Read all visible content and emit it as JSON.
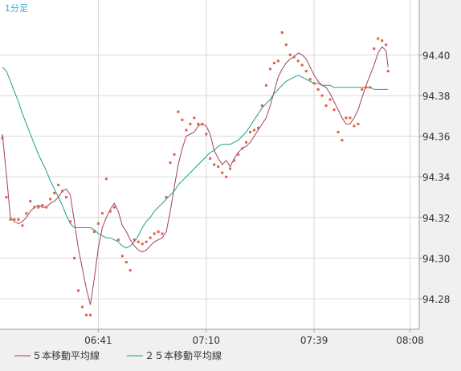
{
  "timeframe_label": "1分足",
  "colors": {
    "background": "#f0f0f0",
    "plot_background": "#ffffff",
    "grid": "#d8d8d8",
    "frame": "#a0a0a0",
    "timeframe": "#33aadd",
    "text": "#333333",
    "price_dots": "#e06040",
    "ma5": "#a04060",
    "ma25": "#20a080"
  },
  "legend": [
    {
      "label": "５本移動平均線",
      "color": "#a04060",
      "key": "ma5"
    },
    {
      "label": "２５本移動平均線",
      "color": "#20a080",
      "key": "ma25"
    }
  ],
  "chart_data": {
    "type": "line",
    "title": "",
    "xlabel": "",
    "ylabel": "",
    "ylim": [
      94.265,
      94.427
    ],
    "yticks": [
      94.28,
      94.3,
      94.32,
      94.34,
      94.36,
      94.38,
      94.4
    ],
    "ytick_labels": [
      "94.28",
      "94.30",
      "94.32",
      "94.34",
      "94.36",
      "94.38",
      "94.40"
    ],
    "xlim": [
      0,
      103.5
    ],
    "xticks": [
      {
        "x": 24,
        "label": "06:41"
      },
      {
        "x": 51,
        "label": "07:10"
      },
      {
        "x": 78,
        "label": "07:39"
      },
      {
        "x": 102,
        "label": "08:08"
      }
    ],
    "grid": true,
    "legend_position": "bottom",
    "series": [
      {
        "name": "５本移動平均線",
        "key": "ma5",
        "style": "line",
        "points": [
          [
            0,
            94.361
          ],
          [
            1,
            94.341
          ],
          [
            2,
            94.32
          ],
          [
            3,
            94.318
          ],
          [
            4,
            94.317
          ],
          [
            5,
            94.318
          ],
          [
            6,
            94.32
          ],
          [
            7,
            94.323
          ],
          [
            8,
            94.325
          ],
          [
            9,
            94.326
          ],
          [
            10,
            94.325
          ],
          [
            11,
            94.325
          ],
          [
            12,
            94.327
          ],
          [
            13,
            94.328
          ],
          [
            14,
            94.33
          ],
          [
            15,
            94.333
          ],
          [
            16,
            94.334
          ],
          [
            17,
            94.331
          ],
          [
            18,
            94.318
          ],
          [
            19,
            94.305
          ],
          [
            20,
            94.295
          ],
          [
            21,
            94.285
          ],
          [
            22,
            94.277
          ],
          [
            23,
            94.29
          ],
          [
            24,
            94.305
          ],
          [
            25,
            94.315
          ],
          [
            26,
            94.32
          ],
          [
            27,
            94.324
          ],
          [
            28,
            94.327
          ],
          [
            29,
            94.323
          ],
          [
            30,
            94.316
          ],
          [
            31,
            94.313
          ],
          [
            32,
            94.309
          ],
          [
            33,
            94.306
          ],
          [
            34,
            94.304
          ],
          [
            35,
            94.303
          ],
          [
            36,
            94.304
          ],
          [
            37,
            94.306
          ],
          [
            38,
            94.308
          ],
          [
            39,
            94.309
          ],
          [
            40,
            94.31
          ],
          [
            41,
            94.313
          ],
          [
            42,
            94.323
          ],
          [
            43,
            94.335
          ],
          [
            44,
            94.346
          ],
          [
            45,
            94.354
          ],
          [
            46,
            94.36
          ],
          [
            47,
            94.361
          ],
          [
            48,
            94.362
          ],
          [
            49,
            94.365
          ],
          [
            50,
            94.366
          ],
          [
            51,
            94.365
          ],
          [
            52,
            94.361
          ],
          [
            53,
            94.353
          ],
          [
            54,
            94.349
          ],
          [
            55,
            94.346
          ],
          [
            56,
            94.348
          ],
          [
            57,
            94.345
          ],
          [
            58,
            94.349
          ],
          [
            59,
            94.352
          ],
          [
            60,
            94.354
          ],
          [
            61,
            94.355
          ],
          [
            62,
            94.357
          ],
          [
            63,
            94.36
          ],
          [
            64,
            94.363
          ],
          [
            65,
            94.366
          ],
          [
            66,
            94.369
          ],
          [
            67,
            94.375
          ],
          [
            68,
            94.382
          ],
          [
            69,
            94.389
          ],
          [
            70,
            94.393
          ],
          [
            71,
            94.396
          ],
          [
            72,
            94.398
          ],
          [
            73,
            94.399
          ],
          [
            74,
            94.401
          ],
          [
            75,
            94.4
          ],
          [
            76,
            94.398
          ],
          [
            77,
            94.394
          ],
          [
            78,
            94.39
          ],
          [
            79,
            94.387
          ],
          [
            80,
            94.385
          ],
          [
            81,
            94.384
          ],
          [
            82,
            94.381
          ],
          [
            83,
            94.377
          ],
          [
            84,
            94.373
          ],
          [
            85,
            94.369
          ],
          [
            86,
            94.366
          ],
          [
            87,
            94.366
          ],
          [
            88,
            94.369
          ],
          [
            89,
            94.373
          ],
          [
            90,
            94.379
          ],
          [
            91,
            94.385
          ],
          [
            92,
            94.39
          ],
          [
            93,
            94.395
          ],
          [
            94,
            94.401
          ],
          [
            95,
            94.404
          ],
          [
            96,
            94.402
          ],
          [
            96.5,
            94.394
          ]
        ]
      },
      {
        "name": "２５本移動平均線",
        "key": "ma25",
        "style": "line",
        "points": [
          [
            0,
            94.394
          ],
          [
            1,
            94.392
          ],
          [
            2,
            94.387
          ],
          [
            3,
            94.382
          ],
          [
            4,
            94.377
          ],
          [
            5,
            94.371
          ],
          [
            6,
            94.366
          ],
          [
            7,
            94.361
          ],
          [
            8,
            94.356
          ],
          [
            9,
            94.351
          ],
          [
            10,
            94.347
          ],
          [
            11,
            94.343
          ],
          [
            12,
            94.338
          ],
          [
            13,
            94.334
          ],
          [
            14,
            94.33
          ],
          [
            15,
            94.326
          ],
          [
            16,
            94.321
          ],
          [
            17,
            94.317
          ],
          [
            18,
            94.315
          ],
          [
            19,
            94.315
          ],
          [
            20,
            94.315
          ],
          [
            21,
            94.315
          ],
          [
            22,
            94.315
          ],
          [
            23,
            94.314
          ],
          [
            24,
            94.312
          ],
          [
            25,
            94.311
          ],
          [
            26,
            94.31
          ],
          [
            27,
            94.31
          ],
          [
            28,
            94.309
          ],
          [
            29,
            94.308
          ],
          [
            30,
            94.306
          ],
          [
            31,
            94.305
          ],
          [
            32,
            94.306
          ],
          [
            33,
            94.308
          ],
          [
            34,
            94.311
          ],
          [
            35,
            94.315
          ],
          [
            36,
            94.318
          ],
          [
            37,
            94.32
          ],
          [
            38,
            94.323
          ],
          [
            39,
            94.325
          ],
          [
            40,
            94.327
          ],
          [
            41,
            94.329
          ],
          [
            42,
            94.331
          ],
          [
            43,
            94.333
          ],
          [
            44,
            94.336
          ],
          [
            45,
            94.338
          ],
          [
            46,
            94.34
          ],
          [
            47,
            94.342
          ],
          [
            48,
            94.344
          ],
          [
            49,
            94.346
          ],
          [
            50,
            94.348
          ],
          [
            51,
            94.35
          ],
          [
            52,
            94.352
          ],
          [
            53,
            94.353
          ],
          [
            54,
            94.355
          ],
          [
            55,
            94.356
          ],
          [
            56,
            94.356
          ],
          [
            57,
            94.356
          ],
          [
            58,
            94.357
          ],
          [
            59,
            94.358
          ],
          [
            60,
            94.36
          ],
          [
            61,
            94.362
          ],
          [
            62,
            94.365
          ],
          [
            63,
            94.368
          ],
          [
            64,
            94.371
          ],
          [
            65,
            94.374
          ],
          [
            66,
            94.376
          ],
          [
            67,
            94.378
          ],
          [
            68,
            94.381
          ],
          [
            69,
            94.383
          ],
          [
            70,
            94.385
          ],
          [
            71,
            94.387
          ],
          [
            72,
            94.388
          ],
          [
            73,
            94.389
          ],
          [
            74,
            94.39
          ],
          [
            75,
            94.389
          ],
          [
            76,
            94.388
          ],
          [
            77,
            94.387
          ],
          [
            78,
            94.386
          ],
          [
            79,
            94.386
          ],
          [
            80,
            94.385
          ],
          [
            81,
            94.385
          ],
          [
            82,
            94.385
          ],
          [
            83,
            94.384
          ],
          [
            84,
            94.384
          ],
          [
            85,
            94.384
          ],
          [
            86,
            94.384
          ],
          [
            87,
            94.384
          ],
          [
            88,
            94.384
          ],
          [
            89,
            94.384
          ],
          [
            90,
            94.384
          ],
          [
            91,
            94.384
          ],
          [
            92,
            94.384
          ],
          [
            93,
            94.383
          ],
          [
            94,
            94.383
          ],
          [
            95,
            94.383
          ],
          [
            96,
            94.383
          ],
          [
            96.5,
            94.383
          ]
        ]
      },
      {
        "name": "",
        "key": "price",
        "style": "dots",
        "points": [
          [
            0,
            94.359
          ],
          [
            1,
            94.33
          ],
          [
            2,
            94.319
          ],
          [
            3,
            94.319
          ],
          [
            4,
            94.319
          ],
          [
            5,
            94.316
          ],
          [
            6,
            94.322
          ],
          [
            7,
            94.328
          ],
          [
            8,
            94.325
          ],
          [
            9,
            94.325
          ],
          [
            10,
            94.326
          ],
          [
            11,
            94.325
          ],
          [
            12,
            94.329
          ],
          [
            13,
            94.332
          ],
          [
            14,
            94.336
          ],
          [
            15,
            94.333
          ],
          [
            16,
            94.33
          ],
          [
            17,
            94.318
          ],
          [
            18,
            94.3
          ],
          [
            19,
            94.284
          ],
          [
            20,
            94.276
          ],
          [
            21,
            94.272
          ],
          [
            22,
            94.272
          ],
          [
            23,
            94.313
          ],
          [
            24,
            94.317
          ],
          [
            25,
            94.322
          ],
          [
            26,
            94.339
          ],
          [
            27,
            94.323
          ],
          [
            28,
            94.325
          ],
          [
            29,
            94.309
          ],
          [
            30,
            94.301
          ],
          [
            31,
            94.298
          ],
          [
            32,
            94.294
          ],
          [
            33,
            94.309
          ],
          [
            34,
            94.308
          ],
          [
            35,
            94.307
          ],
          [
            36,
            94.308
          ],
          [
            37,
            94.31
          ],
          [
            38,
            94.312
          ],
          [
            39,
            94.313
          ],
          [
            40,
            94.312
          ],
          [
            41,
            94.33
          ],
          [
            42,
            94.347
          ],
          [
            43,
            94.351
          ],
          [
            44,
            94.372
          ],
          [
            45,
            94.368
          ],
          [
            46,
            94.363
          ],
          [
            47,
            94.366
          ],
          [
            48,
            94.369
          ],
          [
            49,
            94.366
          ],
          [
            50,
            94.366
          ],
          [
            51,
            94.361
          ],
          [
            52,
            94.349
          ],
          [
            53,
            94.346
          ],
          [
            54,
            94.345
          ],
          [
            55,
            94.342
          ],
          [
            56,
            94.34
          ],
          [
            57,
            94.344
          ],
          [
            58,
            94.348
          ],
          [
            59,
            94.351
          ],
          [
            60,
            94.354
          ],
          [
            61,
            94.357
          ],
          [
            62,
            94.362
          ],
          [
            63,
            94.363
          ],
          [
            64,
            94.364
          ],
          [
            65,
            94.375
          ],
          [
            66,
            94.385
          ],
          [
            67,
            94.393
          ],
          [
            68,
            94.396
          ],
          [
            69,
            94.397
          ],
          [
            70,
            94.411
          ],
          [
            71,
            94.405
          ],
          [
            72,
            94.4
          ],
          [
            73,
            94.399
          ],
          [
            74,
            94.397
          ],
          [
            75,
            94.395
          ],
          [
            76,
            94.392
          ],
          [
            77,
            94.388
          ],
          [
            78,
            94.386
          ],
          [
            79,
            94.383
          ],
          [
            80,
            94.38
          ],
          [
            81,
            94.375
          ],
          [
            82,
            94.378
          ],
          [
            83,
            94.373
          ],
          [
            84,
            94.362
          ],
          [
            85,
            94.358
          ],
          [
            86,
            94.369
          ],
          [
            87,
            94.369
          ],
          [
            88,
            94.365
          ],
          [
            89,
            94.366
          ],
          [
            90,
            94.383
          ],
          [
            91,
            94.384
          ],
          [
            92,
            94.384
          ],
          [
            93,
            94.403
          ],
          [
            94,
            94.408
          ],
          [
            95,
            94.407
          ],
          [
            96,
            94.405
          ],
          [
            96.5,
            94.392
          ]
        ]
      }
    ]
  }
}
